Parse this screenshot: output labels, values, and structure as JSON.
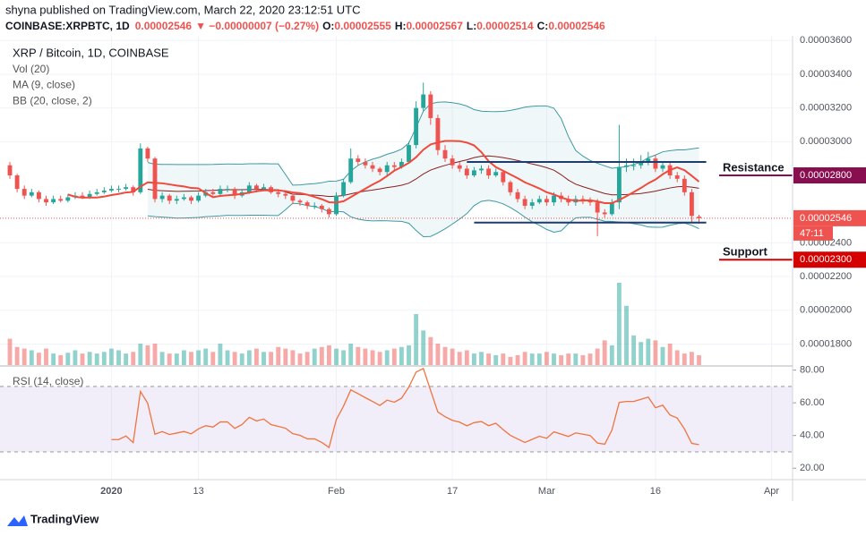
{
  "header": {
    "published": "shyna published on TradingView.com, March 22, 2020 23:12:51 UTC",
    "symbol": "COINBASE:XRPBTC, 1D",
    "last": "0.00002546",
    "change": "▼ −0.00000007 (−0.27%)",
    "o_label": "O:",
    "o": "0.00002555",
    "h_label": "H:",
    "h": "0.00002567",
    "l_label": "L:",
    "l": "0.00002514",
    "c_label": "C:",
    "c": "0.00002546"
  },
  "footer": {
    "brand": "TradingView"
  },
  "chart_data": {
    "type": "candlestick",
    "legend": [
      "XRP / Bitcoin, 1D, COINBASE",
      "Vol (20)",
      "MA (9, close)",
      "BB (20, close, 2)"
    ],
    "ma_period": 9,
    "bb_period": 20,
    "bb_mult": 2,
    "rsi_label": "RSI (14, close)",
    "rsi_period": 14,
    "up_color": "#26a69a",
    "down_color": "#ef5350",
    "ma_color": "#ef4a3c",
    "bb_color": "#3c9aa3",
    "bb_basis_color": "#8a1f1f",
    "rsi_color": "#f0743e",
    "xlim": [
      -1.36,
      107.9
    ],
    "ylim": [
      1.675e-05,
      3.628e-05
    ],
    "xticks": [
      {
        "value": 14,
        "label": "2020"
      },
      {
        "value": 26,
        "label": "13"
      },
      {
        "value": 45,
        "label": "Feb"
      },
      {
        "value": 61,
        "label": "17"
      },
      {
        "value": 74,
        "label": "Mar"
      },
      {
        "value": 89,
        "label": "16"
      },
      {
        "value": 105,
        "label": "Apr"
      }
    ],
    "yticks": [
      {
        "value": 1.8e-05,
        "label": "0.00001800"
      },
      {
        "value": 2e-05,
        "label": "0.00002000"
      },
      {
        "value": 2.2e-05,
        "label": "0.00002200"
      },
      {
        "value": 2.4e-05,
        "label": "0.00002400"
      },
      {
        "value": 3e-05,
        "label": "0.00003000"
      },
      {
        "value": 3.2e-05,
        "label": "0.00003200"
      },
      {
        "value": 3.4e-05,
        "label": "0.00003400"
      },
      {
        "value": 3.6e-05,
        "label": "0.00003600"
      }
    ],
    "open": [
      2.86e-05,
      2.8e-05,
      2.72e-05,
      2.68e-05,
      2.7e-05,
      2.66e-05,
      2.64e-05,
      2.66e-05,
      2.65e-05,
      2.67e-05,
      2.68e-05,
      2.67e-05,
      2.69e-05,
      2.7e-05,
      2.71e-05,
      2.72e-05,
      2.72e-05,
      2.73e-05,
      2.7e-05,
      2.96e-05,
      2.9e-05,
      2.66e-05,
      2.68e-05,
      2.65e-05,
      2.66e-05,
      2.67e-05,
      2.65e-05,
      2.68e-05,
      2.7e-05,
      2.69e-05,
      2.72e-05,
      2.72e-05,
      2.68e-05,
      2.7e-05,
      2.74e-05,
      2.72e-05,
      2.73e-05,
      2.7e-05,
      2.69e-05,
      2.68e-05,
      2.65e-05,
      2.64e-05,
      2.62e-05,
      2.62e-05,
      2.6e-05,
      2.57e-05,
      2.68e-05,
      2.76e-05,
      2.9e-05,
      2.88e-05,
      2.86e-05,
      2.84e-05,
      2.82e-05,
      2.86e-05,
      2.85e-05,
      2.88e-05,
      2.98e-05,
      3.2e-05,
      3.28e-05,
      3.14e-05,
      2.95e-05,
      2.9e-05,
      2.86e-05,
      2.84e-05,
      2.8e-05,
      2.83e-05,
      2.84e-05,
      2.8e-05,
      2.82e-05,
      2.76e-05,
      2.7e-05,
      2.66e-05,
      2.62e-05,
      2.64e-05,
      2.66e-05,
      2.64e-05,
      2.68e-05,
      2.66e-05,
      2.64e-05,
      2.66e-05,
      2.65e-05,
      2.64e-05,
      2.58e-05,
      2.57e-05,
      2.64e-05,
      2.85e-05,
      2.86e-05,
      2.86e-05,
      2.88e-05,
      2.9e-05,
      2.84e-05,
      2.86e-05,
      2.8e-05,
      2.78e-05,
      2.7e-05,
      2.555e-05
    ],
    "high": [
      2.88e-05,
      2.81e-05,
      2.74e-05,
      2.72e-05,
      2.71e-05,
      2.68e-05,
      2.68e-05,
      2.68e-05,
      2.69e-05,
      2.7e-05,
      2.7e-05,
      2.71e-05,
      2.72e-05,
      2.73e-05,
      2.74e-05,
      2.74e-05,
      2.75e-05,
      2.74e-05,
      2.99e-05,
      2.97e-05,
      2.91e-05,
      2.7e-05,
      2.69e-05,
      2.68e-05,
      2.69e-05,
      2.68e-05,
      2.7e-05,
      2.72e-05,
      2.72e-05,
      2.74e-05,
      2.74e-05,
      2.73e-05,
      2.72e-05,
      2.76e-05,
      2.75e-05,
      2.75e-05,
      2.74e-05,
      2.71e-05,
      2.7e-05,
      2.69e-05,
      2.66e-05,
      2.65e-05,
      2.64e-05,
      2.63e-05,
      2.61e-05,
      2.7e-05,
      2.78e-05,
      2.96e-05,
      2.92e-05,
      2.9e-05,
      2.88e-05,
      2.85e-05,
      2.88e-05,
      2.88e-05,
      2.9e-05,
      3e-05,
      3.24e-05,
      3.35e-05,
      3.3e-05,
      3.16e-05,
      2.98e-05,
      2.92e-05,
      2.88e-05,
      2.86e-05,
      2.85e-05,
      2.86e-05,
      2.86e-05,
      2.84e-05,
      2.83e-05,
      2.77e-05,
      2.72e-05,
      2.68e-05,
      2.66e-05,
      2.68e-05,
      2.68e-05,
      2.7e-05,
      2.7e-05,
      2.68e-05,
      2.68e-05,
      2.68e-05,
      2.67e-05,
      2.66e-05,
      2.6e-05,
      2.66e-05,
      3.1e-05,
      2.9e-05,
      2.9e-05,
      2.92e-05,
      2.94e-05,
      2.92e-05,
      2.88e-05,
      2.88e-05,
      2.82e-05,
      2.8e-05,
      2.72e-05,
      2.567e-05
    ],
    "low": [
      2.78e-05,
      2.7e-05,
      2.66e-05,
      2.67e-05,
      2.64e-05,
      2.62e-05,
      2.63e-05,
      2.64e-05,
      2.64e-05,
      2.66e-05,
      2.66e-05,
      2.66e-05,
      2.68e-05,
      2.69e-05,
      2.7e-05,
      2.7e-05,
      2.71e-05,
      2.68e-05,
      2.69e-05,
      2.88e-05,
      2.64e-05,
      2.64e-05,
      2.63e-05,
      2.63e-05,
      2.65e-05,
      2.63e-05,
      2.64e-05,
      2.67e-05,
      2.68e-05,
      2.68e-05,
      2.7e-05,
      2.66e-05,
      2.67e-05,
      2.69e-05,
      2.7e-05,
      2.71e-05,
      2.69e-05,
      2.67e-05,
      2.66e-05,
      2.63e-05,
      2.62e-05,
      2.6e-05,
      2.6e-05,
      2.58e-05,
      2.55e-05,
      2.56e-05,
      2.67e-05,
      2.75e-05,
      2.86e-05,
      2.84e-05,
      2.82e-05,
      2.8e-05,
      2.8e-05,
      2.83e-05,
      2.84e-05,
      2.87e-05,
      2.96e-05,
      3.18e-05,
      3.1e-05,
      2.92e-05,
      2.88e-05,
      2.84e-05,
      2.82e-05,
      2.78e-05,
      2.79e-05,
      2.81e-05,
      2.78e-05,
      2.79e-05,
      2.74e-05,
      2.68e-05,
      2.64e-05,
      2.6e-05,
      2.6e-05,
      2.63e-05,
      2.62e-05,
      2.62e-05,
      2.64e-05,
      2.62e-05,
      2.62e-05,
      2.63e-05,
      2.62e-05,
      2.44e-05,
      2.55e-05,
      2.56e-05,
      2.6e-05,
      2.82e-05,
      2.83e-05,
      2.84e-05,
      2.86e-05,
      2.82e-05,
      2.82e-05,
      2.78e-05,
      2.76e-05,
      2.68e-05,
      2.52e-05,
      2.514e-05
    ],
    "close": [
      2.8e-05,
      2.72e-05,
      2.68e-05,
      2.7e-05,
      2.66e-05,
      2.64e-05,
      2.66e-05,
      2.65e-05,
      2.67e-05,
      2.68e-05,
      2.67e-05,
      2.69e-05,
      2.7e-05,
      2.71e-05,
      2.72e-05,
      2.72e-05,
      2.73e-05,
      2.7e-05,
      2.96e-05,
      2.9e-05,
      2.66e-05,
      2.68e-05,
      2.65e-05,
      2.66e-05,
      2.67e-05,
      2.65e-05,
      2.68e-05,
      2.7e-05,
      2.69e-05,
      2.72e-05,
      2.72e-05,
      2.68e-05,
      2.7e-05,
      2.74e-05,
      2.72e-05,
      2.73e-05,
      2.7e-05,
      2.69e-05,
      2.68e-05,
      2.65e-05,
      2.64e-05,
      2.62e-05,
      2.62e-05,
      2.6e-05,
      2.57e-05,
      2.68e-05,
      2.76e-05,
      2.9e-05,
      2.88e-05,
      2.86e-05,
      2.84e-05,
      2.82e-05,
      2.86e-05,
      2.85e-05,
      2.88e-05,
      2.98e-05,
      3.2e-05,
      3.28e-05,
      3.14e-05,
      2.95e-05,
      2.9e-05,
      2.86e-05,
      2.84e-05,
      2.8e-05,
      2.83e-05,
      2.84e-05,
      2.8e-05,
      2.82e-05,
      2.76e-05,
      2.7e-05,
      2.66e-05,
      2.62e-05,
      2.64e-05,
      2.66e-05,
      2.64e-05,
      2.68e-05,
      2.66e-05,
      2.64e-05,
      2.66e-05,
      2.65e-05,
      2.64e-05,
      2.58e-05,
      2.57e-05,
      2.64e-05,
      2.85e-05,
      2.86e-05,
      2.86e-05,
      2.88e-05,
      2.9e-05,
      2.84e-05,
      2.86e-05,
      2.8e-05,
      2.78e-05,
      2.7e-05,
      2.56e-05,
      2.546e-05
    ],
    "volume": [
      32,
      22,
      20,
      18,
      15,
      20,
      14,
      12,
      15,
      18,
      14,
      16,
      14,
      16,
      20,
      18,
      14,
      16,
      26,
      24,
      26,
      16,
      14,
      14,
      18,
      16,
      18,
      20,
      16,
      26,
      18,
      16,
      14,
      18,
      20,
      16,
      16,
      22,
      20,
      18,
      14,
      16,
      20,
      22,
      24,
      20,
      18,
      26,
      22,
      20,
      18,
      16,
      18,
      20,
      22,
      24,
      62,
      42,
      34,
      26,
      22,
      20,
      16,
      18,
      14,
      16,
      14,
      12,
      14,
      10,
      12,
      16,
      14,
      14,
      16,
      14,
      12,
      14,
      14,
      12,
      14,
      20,
      30,
      24,
      100,
      72,
      36,
      28,
      32,
      30,
      22,
      26,
      18,
      14,
      16,
      12
    ],
    "vlim": [
      0,
      100
    ],
    "rsi_ylim": [
      13,
      82
    ],
    "rsi_yticks": [
      {
        "value": 20,
        "label": "20.00"
      },
      {
        "value": 40,
        "label": "40.00"
      },
      {
        "value": 60,
        "label": "60.00"
      },
      {
        "value": 80,
        "label": "80.00"
      }
    ],
    "rsi_band": [
      30,
      70
    ],
    "channel_lines": [
      {
        "value": 2.88e-05,
        "start": 63,
        "end": 96,
        "color": "#1f3c6e"
      },
      {
        "value": 2.52e-05,
        "start": 64,
        "end": 96,
        "color": "#1f3c6e"
      }
    ],
    "markers": [
      {
        "text": "Resistance",
        "value": 2.8e-05,
        "label": "0.00002800",
        "color": "#880e4f"
      },
      {
        "text": "Support",
        "value": 2.3e-05,
        "label": "0.00002300",
        "color": "#d50000"
      }
    ],
    "current": {
      "value": 2.546e-05,
      "label": "0.00002546",
      "countdown": "47:11",
      "color": "#ef5350"
    }
  }
}
